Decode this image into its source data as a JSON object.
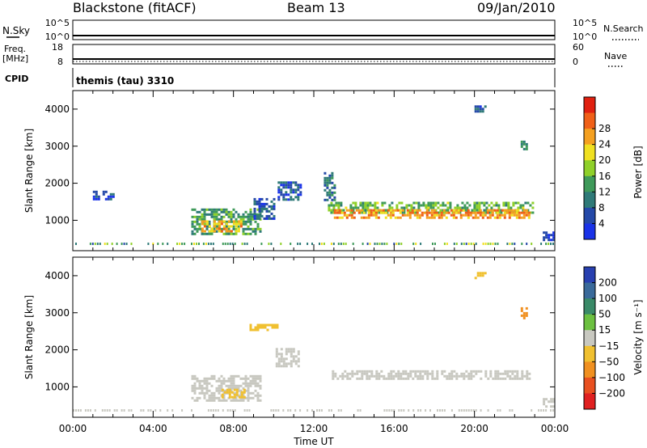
{
  "header": {
    "station": "Blackstone (fitACF)",
    "beam": "Beam 13",
    "date": "09/Jan/2010"
  },
  "strips": {
    "nsky_label": "N.Sky",
    "nsky_ticks": [
      "10^5",
      "10^0"
    ],
    "nsearch_label": "N.Search",
    "nsearch_ticks": [
      "10^5",
      "10^0"
    ],
    "freq_label_line1": "Freq.",
    "freq_label_line2": "[MHz]",
    "freq_ticks": [
      "18",
      "8"
    ],
    "nave_label": "Nave",
    "nave_ticks": [
      "60",
      "0"
    ],
    "cpid_label": "CPID",
    "cpid_value": "themis (tau) 3310"
  },
  "colors": {
    "power_scale": [
      "#1a33e8",
      "#2549a8",
      "#2f7a78",
      "#3f9a5a",
      "#8fd02a",
      "#f0e020",
      "#f4a020",
      "#f06018",
      "#e02010"
    ],
    "velocity_scale": [
      "#2840b0",
      "#3a6a9a",
      "#3a8a68",
      "#6cc040",
      "#c8c8c0",
      "#f0c030",
      "#f09020",
      "#e85020",
      "#e02020"
    ]
  },
  "chart_data": [
    {
      "type": "heatmap",
      "name": "power",
      "ylabel": "Slant Range [km]",
      "yticks": [
        "1000",
        "2000",
        "3000",
        "4000"
      ],
      "ylim": [
        180,
        4500
      ],
      "xlim": [
        0,
        24
      ],
      "colorbar_label": "Power [dB]",
      "colorbar_ticks": [
        "4",
        "8",
        "12",
        "16",
        "20",
        "24",
        "28"
      ],
      "colorbar_range": [
        0,
        32
      ],
      "regions": [
        {
          "x": [
            5.9,
            9.4
          ],
          "y": [
            620,
            1320
          ],
          "v": 12
        },
        {
          "x": [
            6.4,
            8.4
          ],
          "y": [
            680,
            1000
          ],
          "v": 22
        },
        {
          "x": [
            9.0,
            10.0
          ],
          "y": [
            1050,
            1600
          ],
          "v": 6
        },
        {
          "x": [
            10.2,
            11.3
          ],
          "y": [
            1550,
            2050
          ],
          "v": 6
        },
        {
          "x": [
            12.7,
            22.9
          ],
          "y": [
            1200,
            1500
          ],
          "v": 14
        },
        {
          "x": [
            13.0,
            22.7
          ],
          "y": [
            1050,
            1300
          ],
          "v": 24
        },
        {
          "x": [
            12.5,
            13.0
          ],
          "y": [
            1500,
            2300
          ],
          "v": 8
        },
        {
          "x": [
            20.0,
            20.6
          ],
          "y": [
            3950,
            4100
          ],
          "v": 6
        },
        {
          "x": [
            22.3,
            22.6
          ],
          "y": [
            2850,
            3150
          ],
          "v": 10
        },
        {
          "x": [
            23.4,
            23.9
          ],
          "y": [
            500,
            700
          ],
          "v": 5
        },
        {
          "x": [
            1.0,
            2.0
          ],
          "y": [
            1600,
            1800
          ],
          "v": 4
        }
      ]
    },
    {
      "type": "heatmap",
      "name": "velocity",
      "ylabel": "Slant Range [km]",
      "yticks": [
        "1000",
        "2000",
        "3000",
        "4000"
      ],
      "ylim": [
        180,
        4500
      ],
      "xlim": [
        0,
        24
      ],
      "xlabel": "Time UT",
      "xticks": [
        "00:00",
        "04:00",
        "08:00",
        "12:00",
        "16:00",
        "20:00",
        "00:00"
      ],
      "colorbar_label": "Velocity [m s⁻¹]",
      "colorbar_ticks": [
        "200",
        "100",
        "50",
        "15",
        "−15",
        "−50",
        "−100",
        "−200"
      ],
      "colorbar_range": [
        -250,
        250
      ],
      "regions": [
        {
          "x": [
            5.9,
            9.4
          ],
          "y": [
            620,
            1320
          ],
          "v": 0
        },
        {
          "x": [
            7.4,
            8.6
          ],
          "y": [
            750,
            950
          ],
          "v": -60
        },
        {
          "x": [
            12.9,
            22.8
          ],
          "y": [
            1250,
            1450
          ],
          "v": 0
        },
        {
          "x": [
            10.1,
            11.3
          ],
          "y": [
            1550,
            2050
          ],
          "v": 0
        },
        {
          "x": [
            8.8,
            10.2
          ],
          "y": [
            2550,
            2700
          ],
          "v": -60
        },
        {
          "x": [
            22.3,
            22.6
          ],
          "y": [
            2850,
            3150
          ],
          "v": -90
        },
        {
          "x": [
            20.0,
            20.6
          ],
          "y": [
            3950,
            4100
          ],
          "v": -40
        },
        {
          "x": [
            23.4,
            23.9
          ],
          "y": [
            500,
            700
          ],
          "v": 0
        }
      ]
    }
  ]
}
